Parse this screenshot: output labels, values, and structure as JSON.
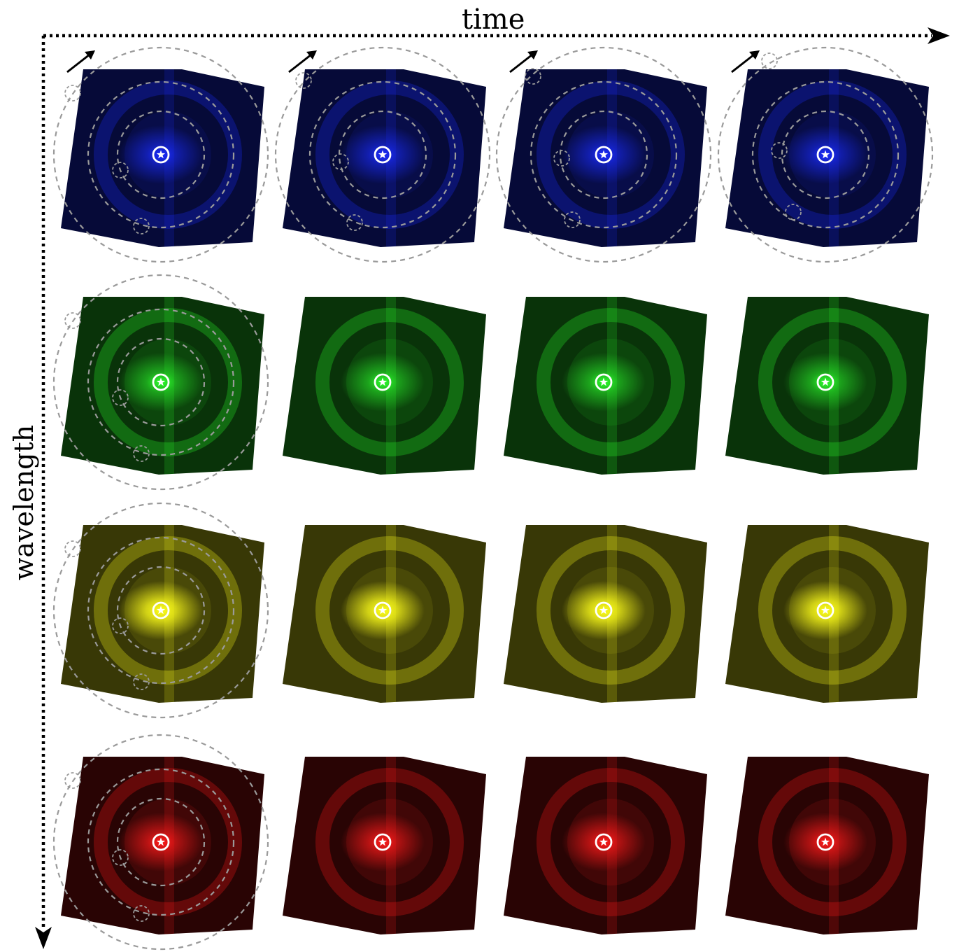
{
  "axes": {
    "x_label": "time",
    "y_label": "wavelength"
  },
  "grid": {
    "rows": 4,
    "columns": 4,
    "rows_order": [
      "blue",
      "green",
      "yellow",
      "red"
    ]
  },
  "colors": {
    "blue": "#1a2cff",
    "green": "#2cff2c",
    "yellow": "#ffff1a",
    "red": "#ff1a1a",
    "overlay_dashes": "#9a9a9a",
    "marker": "#ffffff"
  },
  "icons": {
    "star_marker": "star-icon",
    "rotation_arrow": "arrow-up-right-icon"
  }
}
